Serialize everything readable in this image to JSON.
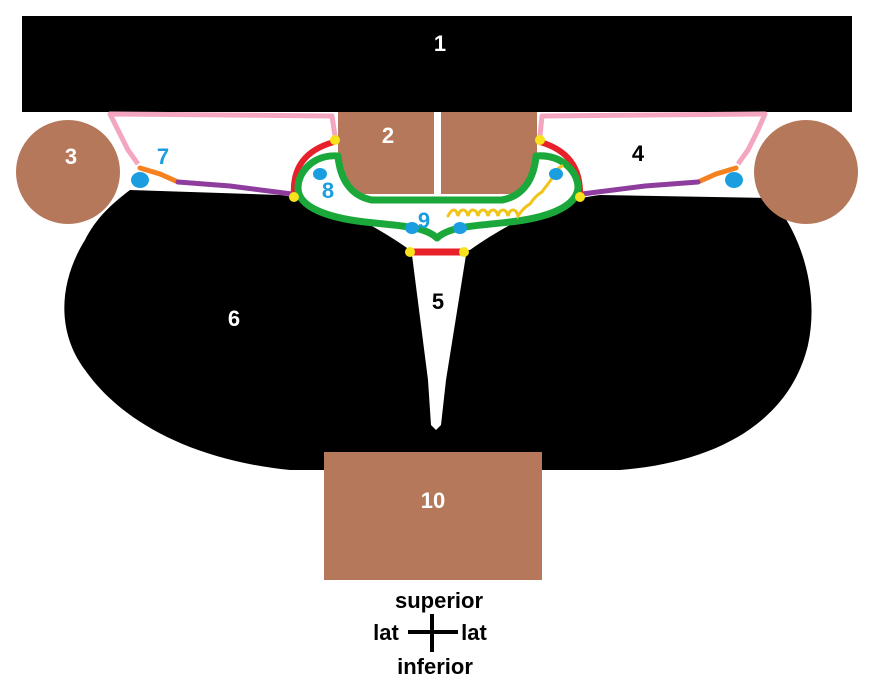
{
  "labels": {
    "l1": "1",
    "l2": "2",
    "l3": "3",
    "l4": "4",
    "l5": "5",
    "l6": "6",
    "l7": "7",
    "l8": "8",
    "l9": "9",
    "l10": "10"
  },
  "compass": {
    "superior": "superior",
    "inferior": "inferior",
    "lat_left": "lat",
    "lat_right": "lat"
  },
  "colors": {
    "background": "#ffffff",
    "black_region": "#000000",
    "brown_structure": "#b5785a",
    "pink_outline": "#f4a6c0",
    "red_line": "#e8202a",
    "green_outline": "#1aa83a",
    "yellow_dot": "#f7e21b",
    "orange_line": "#f58220",
    "purple_line": "#8e3d9e",
    "blue_blob": "#1a9ee0",
    "label_blue": "#1a9ee0"
  }
}
